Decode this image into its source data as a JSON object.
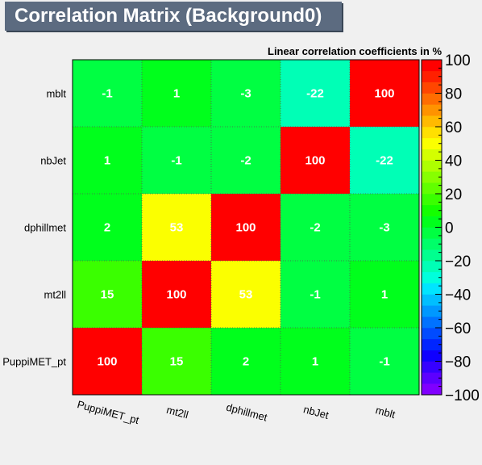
{
  "title": "Correlation Matrix (Background0)",
  "chart_data": {
    "type": "heatmap",
    "subtitle": "Linear correlation coefficients in %",
    "x_categories": [
      "PuppiMET_pt",
      "mt2ll",
      "dphillmet",
      "nbJet",
      "mblt"
    ],
    "y_categories": [
      "PuppiMET_pt",
      "mt2ll",
      "dphillmet",
      "nbJet",
      "mblt"
    ],
    "values": [
      [
        100,
        15,
        2,
        1,
        -1
      ],
      [
        15,
        100,
        53,
        -1,
        1
      ],
      [
        2,
        53,
        100,
        -2,
        -3
      ],
      [
        1,
        -1,
        -2,
        100,
        -22
      ],
      [
        -1,
        1,
        -3,
        -22,
        100
      ]
    ],
    "zlim": [
      -100,
      100
    ],
    "colorbar_ticks": [
      100,
      80,
      60,
      40,
      20,
      0,
      -20,
      -40,
      -60,
      -80,
      -100
    ],
    "colorbar_tick_labels": [
      "100",
      "80",
      "60",
      "40",
      "20",
      "0",
      "−20",
      "−40",
      "−60",
      "−80",
      "−100"
    ],
    "palette": [
      "#8000ff",
      "#5c00ff",
      "#3600ff",
      "#0f00ff",
      "#0025ff",
      "#004bff",
      "#0072ff",
      "#0098ff",
      "#00bfff",
      "#00e5ff",
      "#00ffdc",
      "#00ffb6",
      "#00ff8f",
      "#00ff69",
      "#00ff42",
      "#00ff1c",
      "#14ff00",
      "#3aff00",
      "#61ff00",
      "#87ff00",
      "#aeff00",
      "#d4ff00",
      "#fbff00",
      "#ffe000",
      "#ffba00",
      "#ff9300",
      "#ff6d00",
      "#ff4600",
      "#ff2000",
      "#ff0000"
    ],
    "grid": true
  }
}
